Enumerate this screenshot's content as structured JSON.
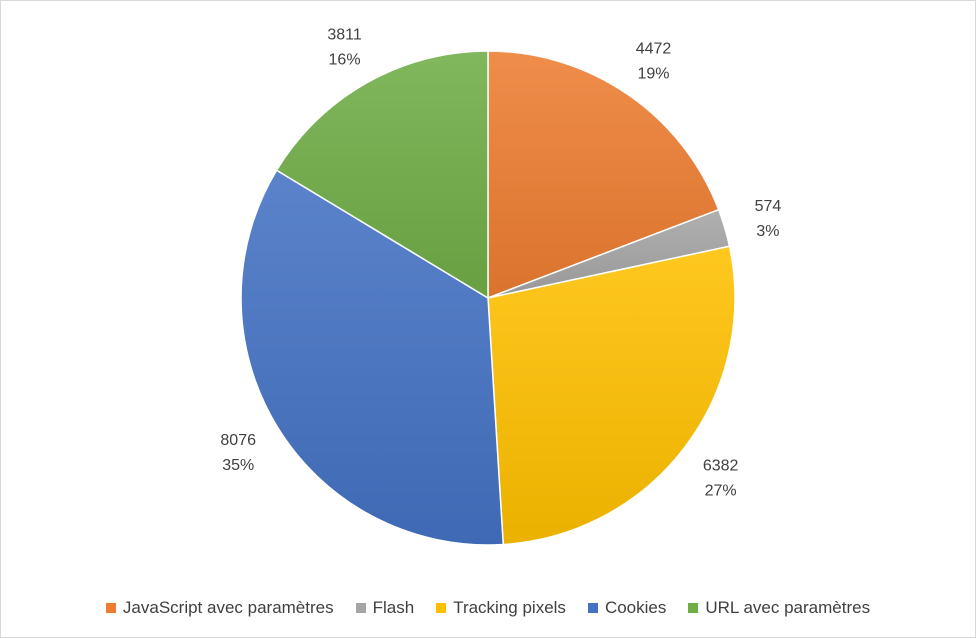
{
  "chart_data": {
    "type": "pie",
    "title": "",
    "start_angle_deg": 0,
    "direction": "clockwise",
    "legend_position": "bottom",
    "categories": [
      "JavaScript avec paramètres",
      "Flash",
      "Tracking pixels",
      "Cookies",
      "URL avec paramètres"
    ],
    "values": [
      4472,
      574,
      6382,
      8076,
      3811
    ],
    "percent_labels": [
      "19%",
      "3%",
      "27%",
      "35%",
      "16%"
    ],
    "value_labels": [
      "4472",
      "574",
      "6382",
      "8076",
      "3811"
    ],
    "colors": [
      "#ED7D31",
      "#A5A5A5",
      "#FFC000",
      "#4472C4",
      "#70AD47"
    ]
  }
}
